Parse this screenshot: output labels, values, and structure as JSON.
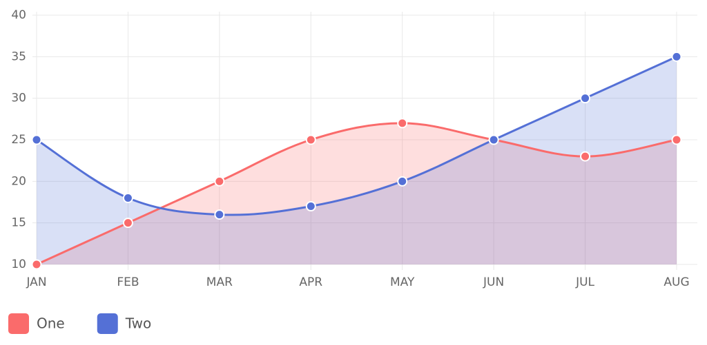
{
  "chart_data": {
    "type": "line",
    "categories": [
      "JAN",
      "FEB",
      "MAR",
      "APR",
      "MAY",
      "JUN",
      "JUL",
      "AUG"
    ],
    "series": [
      {
        "name": "One",
        "color": "#fa6b6b",
        "values": [
          10,
          15,
          20,
          25,
          27,
          25,
          23,
          25
        ]
      },
      {
        "name": "Two",
        "color": "#5470d6",
        "values": [
          25,
          18,
          16,
          17,
          20,
          25,
          30,
          35
        ]
      }
    ],
    "ylim": [
      10,
      40
    ],
    "yticks": [
      10,
      15,
      20,
      25,
      30,
      35,
      40
    ],
    "grid": true,
    "fill": true,
    "legend": "bottom-left"
  }
}
